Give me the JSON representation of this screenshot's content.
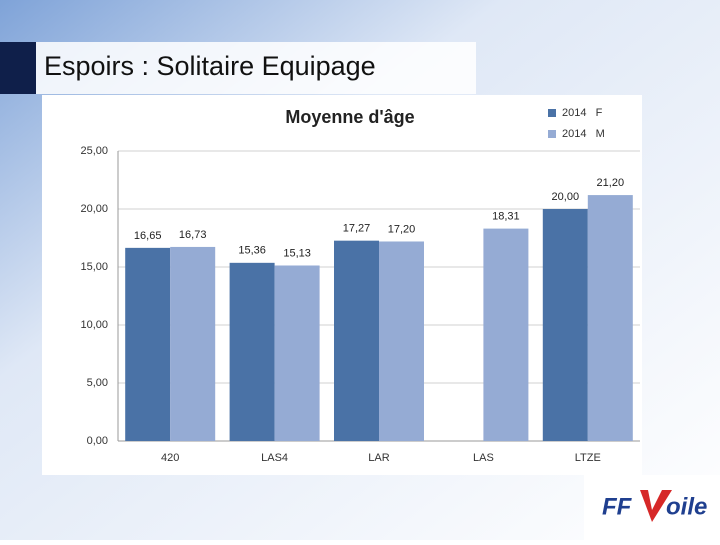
{
  "slide": {
    "title": "Espoirs : Solitaire Equipage",
    "logo": [
      "FF",
      "oile"
    ]
  },
  "chart_data": {
    "type": "bar",
    "title": "Moyenne d'âge",
    "categories": [
      "420",
      "LAS4",
      "LAR",
      "LAS",
      "LTZE"
    ],
    "series": [
      {
        "name": "2014   F",
        "color": "#4a72a6",
        "values": [
          16.65,
          15.36,
          17.27,
          null,
          20.0
        ],
        "value_labels": [
          "16,65",
          "15,36",
          "17,27",
          null,
          "20,00"
        ]
      },
      {
        "name": "2014   M",
        "color": "#95abd4",
        "values": [
          16.73,
          15.13,
          17.2,
          18.31,
          21.2
        ],
        "value_labels": [
          "16,73",
          "15,13",
          "17,20",
          "18,31",
          "21,20"
        ]
      }
    ],
    "ylim": [
      0,
      25
    ],
    "yticks": [
      {
        "value": 0,
        "label": "0,00"
      },
      {
        "value": 5,
        "label": "5,00"
      },
      {
        "value": 10,
        "label": "10,00"
      },
      {
        "value": 15,
        "label": "15,00"
      },
      {
        "value": 20,
        "label": "20,00"
      },
      {
        "value": 25,
        "label": "25,00"
      }
    ],
    "grid": true,
    "legend": "top-right"
  }
}
